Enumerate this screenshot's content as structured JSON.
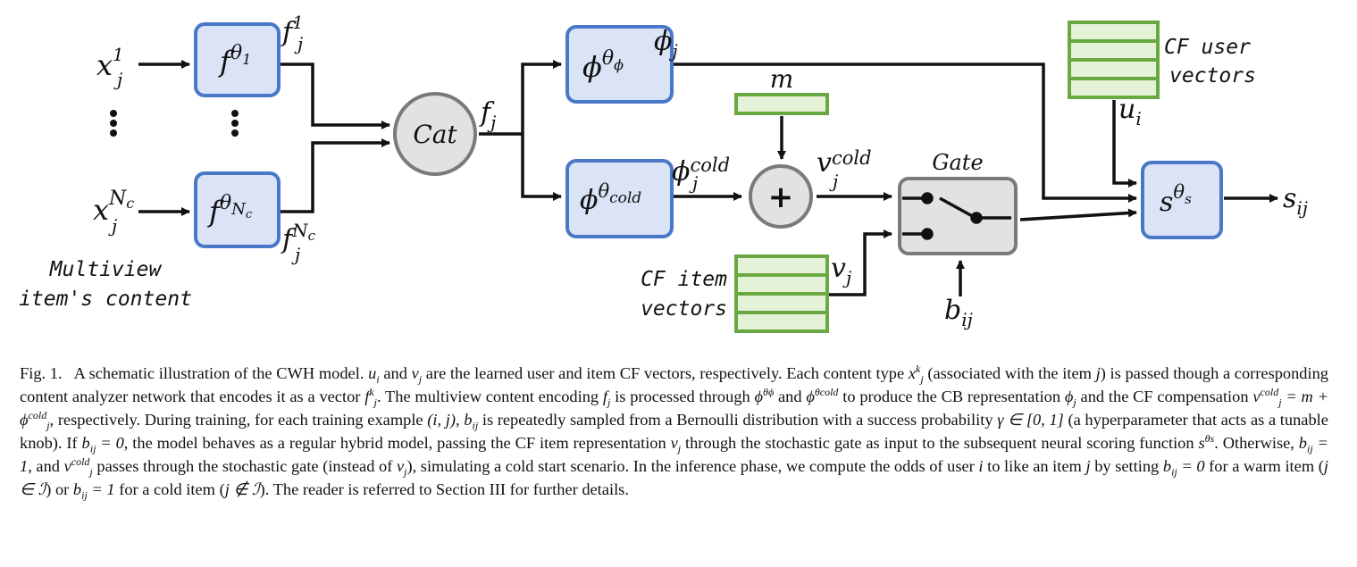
{
  "diagram": {
    "inputs": {
      "x1": "x",
      "x1_sup": "1",
      "x1_sub": "j",
      "xN": "x",
      "xN_sup": "N",
      "xN_sup2": "c",
      "xN_sub": "j",
      "caption_line1": "Multiview",
      "caption_line2": "item's content"
    },
    "boxes": {
      "f1": {
        "base": "f",
        "sup": "θ",
        "sup2": "1"
      },
      "fN": {
        "base": "f",
        "sup": "θ",
        "sup2": "N",
        "sup3": "c"
      },
      "phi": {
        "base": "ϕ",
        "sup": "θ",
        "sup2": "ϕ"
      },
      "phi_cold": {
        "base": "ϕ",
        "sup": "θ",
        "sup2": "cold"
      },
      "s": {
        "base": "s",
        "sup": "θ",
        "sup2": "s"
      },
      "cat": "Cat",
      "plus": "+",
      "gate": "Gate"
    },
    "edge_labels": {
      "f1_out": "f",
      "f1_out_sup": "1",
      "f1_out_sub": "j",
      "fN_out": "f",
      "fN_out_sup": "N",
      "fN_out_sup2": "c",
      "fN_out_sub": "j",
      "fj": "f",
      "fj_sub": "j",
      "phi_j": "ϕ",
      "phi_j_sub": "j",
      "phi_cold_out": "ϕ",
      "phi_cold_out_sup": "cold",
      "phi_cold_out_sub": "j",
      "v_cold": "v",
      "v_cold_sup": "cold",
      "v_cold_sub": "j",
      "m": "m",
      "u_i": "u",
      "u_i_sub": "i",
      "v_j": "v",
      "v_j_sub": "j",
      "b_ij": "b",
      "b_ij_sub": "ij",
      "s_ij": "s",
      "s_ij_sub": "ij"
    },
    "side_labels": {
      "cf_user_1": "CF user",
      "cf_user_2": "vectors",
      "cf_item_1": "CF item",
      "cf_item_2": "vectors"
    },
    "colors": {
      "box_fill": "#dbe3f7",
      "box_stroke": "#4a78c8",
      "vec_fill": "#e4f2d8",
      "vec_stroke": "#6aa842",
      "node_fill": "#e2e2e2",
      "node_stroke": "#7a7a7a"
    }
  },
  "caption": {
    "fig": "Fig. 1.",
    "t1": "A schematic illustration of the CWH model.",
    "t2": "and",
    "t3": "are the learned user and item CF vectors, respectively. Each content type",
    "t4": "(associated with the item",
    "t5": ") is passed though a corresponding content analyzer network that encodes it as a vector",
    "t6": ". The multiview content encoding",
    "t7": "is processed through",
    "t8": "and",
    "t9": "to produce the CB representation",
    "t10": "and the CF compensation",
    "t11": ", respectively. During training, for each training example",
    "t12": ",",
    "t13": "is repeatedly sampled from a Bernoulli distribution with a success probability",
    "t14": "(a hyperparameter that acts as a tunable knob). If",
    "t15": ", the model behaves as a regular hybrid model, passing the CF item representation",
    "t16": "through the stochastic gate as input to the subsequent neural scoring function",
    "t17": ". Otherwise,",
    "t18": ", and",
    "t19": "passes through the stochastic gate (instead of",
    "t20": "), simulating a cold start scenario. In the inference phase, we compute the odds of user",
    "t21": "to like an item",
    "t22": "by setting",
    "t23": "for a warm item (",
    "t24": ") or",
    "t25": "for a cold item (",
    "t26": "). The reader is referred to Section III for further details.",
    "m_ui": "u",
    "m_i": "i",
    "m_vj": "v",
    "m_j": "j",
    "m_x": "x",
    "m_k": "k",
    "m_f": "f",
    "m_phi": "ϕ",
    "m_theta": "θ",
    "m_cold": "cold",
    "m_v": "v",
    "m_eq": "= m +",
    "m_pair": "(i, j)",
    "m_b": "b",
    "m_ij": "ij",
    "m_gamma": "γ ∈ [0, 1]",
    "m_eq0": "= 0",
    "m_eq1": "= 1",
    "m_s": "s",
    "m_s_sub": "s",
    "m_i_plain": "i",
    "m_j_plain": "j",
    "m_in": "j ∈ ℐ",
    "m_notin": "j ∉ ℐ"
  }
}
